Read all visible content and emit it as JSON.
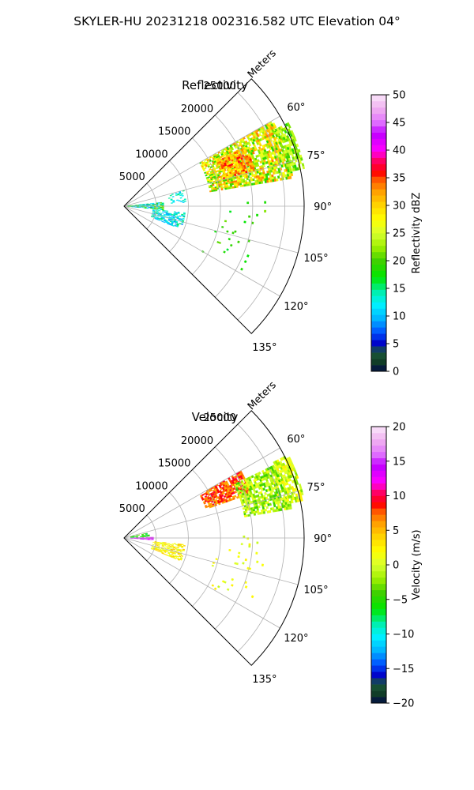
{
  "figure": {
    "title": "SKYLER-HU  20231218  002316.582 UTC Elevation 04°"
  },
  "chart_data": [
    {
      "type": "heatmap",
      "projection": "polar-sector",
      "title": "Reflectivity",
      "range_label": "Meters",
      "range_ticks": [
        5000,
        10000,
        15000,
        20000,
        25000
      ],
      "range_tick_labels": [
        "5000",
        "10000",
        "15000",
        "20000",
        "25000"
      ],
      "range_max": 28000,
      "azimuth_range": [
        45,
        135
      ],
      "azimuth_ticks": [
        60,
        75,
        90,
        105,
        120,
        135
      ],
      "azimuth_tick_labels": [
        "60°",
        "75°",
        "90°",
        "105°",
        "120°",
        "135°"
      ],
      "grid": true,
      "colorbar": {
        "label": "Reflectivity dBZ",
        "min": 0,
        "max": 50,
        "ticks": [
          0,
          5,
          10,
          15,
          20,
          25,
          30,
          35,
          40,
          45,
          50
        ],
        "tick_labels": [
          "0",
          "5",
          "10",
          "15",
          "20",
          "25",
          "30",
          "35",
          "40",
          "45",
          "50"
        ]
      },
      "echo_regions": [
        {
          "az": [
            60,
            80
          ],
          "range": [
            13500,
            26500
          ],
          "value": [
            18,
            34
          ],
          "density": 0.75
        },
        {
          "az": [
            64,
            74
          ],
          "range": [
            16000,
            21000
          ],
          "value": [
            27,
            37
          ],
          "density": 0.8
        },
        {
          "az": [
            63,
            78
          ],
          "range": [
            26000,
            28500
          ],
          "value": [
            18,
            26
          ],
          "density": 0.7
        },
        {
          "az": [
            84,
            95
          ],
          "range": [
            500,
            6000
          ],
          "value": [
            8,
            22
          ],
          "density": 0.6
        },
        {
          "az": [
            96,
            112
          ],
          "range": [
            4500,
            9500
          ],
          "value": [
            8,
            16
          ],
          "density": 0.5
        },
        {
          "az": [
            75,
            86
          ],
          "range": [
            7000,
            9500
          ],
          "value": [
            10,
            16
          ],
          "density": 0.25
        },
        {
          "az": [
            88,
            120
          ],
          "range": [
            14000,
            22000
          ],
          "value": [
            16,
            22
          ],
          "density": 0.03
        }
      ]
    },
    {
      "type": "heatmap",
      "projection": "polar-sector",
      "title": "Velocity",
      "range_label": "Meters",
      "range_ticks": [
        5000,
        10000,
        15000,
        20000,
        25000
      ],
      "range_tick_labels": [
        "5000",
        "10000",
        "15000",
        "20000",
        "25000"
      ],
      "range_max": 28000,
      "azimuth_range": [
        45,
        135
      ],
      "azimuth_ticks": [
        60,
        75,
        90,
        105,
        120,
        135
      ],
      "azimuth_tick_labels": [
        "60°",
        "75°",
        "90°",
        "105°",
        "120°",
        "135°"
      ],
      "grid": true,
      "colorbar": {
        "label": "Velocity (m/s)",
        "min": -20,
        "max": 20,
        "ticks": [
          -20,
          -15,
          -10,
          -5,
          0,
          5,
          10,
          15,
          20
        ],
        "tick_labels": [
          "−20",
          "−15",
          "−10",
          "−5",
          "0",
          "5",
          "10",
          "15",
          "20"
        ]
      },
      "echo_regions": [
        {
          "az": [
            60,
            70
          ],
          "range": [
            13500,
            21000
          ],
          "value": [
            5,
            10
          ],
          "density": 0.75
        },
        {
          "az": [
            64,
            80
          ],
          "range": [
            19000,
            26500
          ],
          "value": [
            -5,
            2
          ],
          "density": 0.75
        },
        {
          "az": [
            63,
            78
          ],
          "range": [
            26000,
            28500
          ],
          "value": [
            -3,
            3
          ],
          "density": 0.7
        },
        {
          "az": [
            88,
            94
          ],
          "range": [
            1000,
            4500
          ],
          "value": [
            12,
            17
          ],
          "density": 0.75
        },
        {
          "az": [
            78,
            87
          ],
          "range": [
            1000,
            4000
          ],
          "value": [
            -8,
            -3
          ],
          "density": 0.5
        },
        {
          "az": [
            96,
            112
          ],
          "range": [
            4500,
            9500
          ],
          "value": [
            0,
            5
          ],
          "density": 0.5
        },
        {
          "az": [
            88,
            120
          ],
          "range": [
            14000,
            22000
          ],
          "value": [
            -1,
            3
          ],
          "density": 0.03
        }
      ]
    }
  ]
}
